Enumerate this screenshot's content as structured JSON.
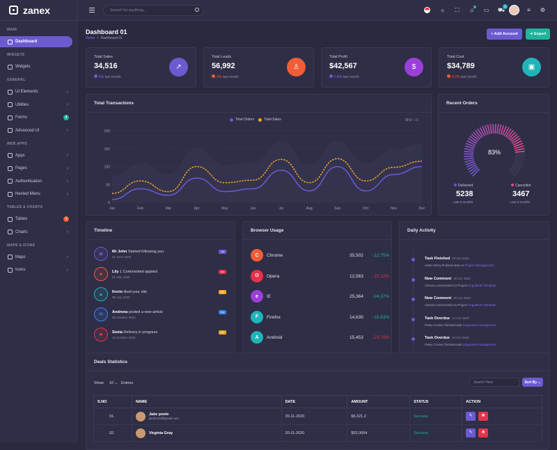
{
  "app": {
    "name": "zanex"
  },
  "sidebar": {
    "sections": [
      {
        "title": "MAIN",
        "items": [
          {
            "label": "Dashboard"
          }
        ]
      },
      {
        "title": "WIDGETS",
        "items": [
          {
            "label": "Widgets"
          }
        ]
      },
      {
        "title": "GENERAL",
        "items": [
          {
            "label": "UI Elements"
          },
          {
            "label": "Utilities"
          },
          {
            "label": "Forms",
            "badge": "4"
          },
          {
            "label": "Advanced UI"
          }
        ]
      },
      {
        "title": "WEB APPS",
        "items": [
          {
            "label": "Apps"
          },
          {
            "label": "Pages"
          },
          {
            "label": "Authentication"
          },
          {
            "label": "Nested Menu"
          }
        ]
      },
      {
        "title": "TABLES & CHARTS",
        "items": [
          {
            "label": "Tables",
            "badge": "3"
          },
          {
            "label": "Charts"
          }
        ]
      },
      {
        "title": "MAPS & ICONS",
        "items": [
          {
            "label": "Maps"
          },
          {
            "label": "Icons"
          }
        ]
      }
    ]
  },
  "topbar": {
    "search_placeholder": "Search for anything...",
    "cart_badge": "5"
  },
  "header": {
    "title": "Dashboard 01",
    "breadcrumb_home": "Home",
    "breadcrumb_sep": "/",
    "breadcrumb_current": "Dashboard 01",
    "add_account": "+ Add Account",
    "export": "Export"
  },
  "stats": [
    {
      "label": "Total Sales",
      "value": "34,516",
      "change": "5%",
      "suffix": " last month",
      "color": "#6b5bd1"
    },
    {
      "label": "Total Leads",
      "value": "56,992",
      "change": "3%",
      "suffix": " last month",
      "color": "#f25c36"
    },
    {
      "label": "Total Profit",
      "value": "$42,567",
      "change": "0.5%",
      "suffix": " last month",
      "color": "#9c3fd8"
    },
    {
      "label": "Total Cost",
      "value": "$34,789",
      "change": "0.2%",
      "suffix": " last month",
      "color": "#20b4b8"
    }
  ],
  "transactions": {
    "title": "Total Transactions",
    "legend_orders": "Total Orders",
    "legend_sales": "Total Sales"
  },
  "chart_data": {
    "type": "line",
    "title": "Total Transactions",
    "categories": [
      "Jan",
      "Feb",
      "Mar",
      "Apr",
      "May",
      "Jun",
      "Jul",
      "Aug",
      "Sep",
      "Oct",
      "Nov",
      "Dec"
    ],
    "yticks": [
      0,
      50,
      100,
      150,
      200
    ],
    "ylim": [
      0,
      200
    ],
    "series": [
      {
        "name": "Total Orders",
        "color": "#6b5bd1",
        "values": [
          8,
          38,
          20,
          68,
          30,
          38,
          90,
          32,
          100,
          32,
          78,
          100
        ]
      },
      {
        "name": "Total Sales",
        "color": "#f5a623",
        "values": [
          25,
          60,
          30,
          100,
          55,
          62,
          120,
          55,
          122,
          60,
          98,
          115
        ]
      }
    ]
  },
  "orders": {
    "title": "Recent Orders",
    "percent": "83%",
    "fill": 0.83,
    "delivered_label": "Delivered",
    "delivered_value": "5238",
    "delivered_sub": "Last 6 months",
    "cancelled_label": "Cancelled",
    "cancelled_value": "3467",
    "cancelled_sub": "Last 6 months"
  },
  "timeline": {
    "title": "Timeline",
    "items": [
      {
        "name": "Mr John",
        "text": " Started following you",
        "date": "01 June 2020",
        "badge": "1m",
        "color": "#6b5bd1",
        "badge_color": "#6b5bd1",
        "icon": "◉"
      },
      {
        "name": "Lily",
        "text": " 1 Commented applied",
        "date": "01 July 2020",
        "badge": "5m",
        "color": "#f25c36",
        "badge_color": "#e8324b",
        "icon": "●"
      },
      {
        "name": "Kevin",
        "text": " liked your site",
        "date": "05 July 2020",
        "badge": "5m",
        "color": "#20b4b8",
        "badge_color": "#f5a623",
        "icon": "▲"
      },
      {
        "name": "Andrena",
        "text": " posted a new article",
        "date": "09 October 2020",
        "badge": "5m",
        "color": "#3b82f6",
        "badge_color": "#3b82f6",
        "icon": "✉"
      },
      {
        "name": "Sonia",
        "text": " Delivery in progress",
        "date": "12 October 2020",
        "badge": "5m",
        "color": "#e8324b",
        "badge_color": "#f5a623",
        "icon": "■"
      }
    ]
  },
  "browser": {
    "title": "Browser Usage",
    "items": [
      {
        "name": "Chrome",
        "value": "35,502",
        "pct": "12.75%",
        "up": true,
        "color": "#f25c36",
        "icon": "C"
      },
      {
        "name": "Opera",
        "value": "12,563",
        "pct": "15.12%",
        "up": false,
        "color": "#e8324b",
        "icon": "O"
      },
      {
        "name": "IE",
        "value": "25,364",
        "pct": "24.37%",
        "up": true,
        "color": "#9c3fd8",
        "icon": "e"
      },
      {
        "name": "Firefox",
        "value": "14,635",
        "pct": "15.63%",
        "up": true,
        "color": "#20b4b8",
        "icon": "F"
      },
      {
        "name": "Android",
        "value": "15,453",
        "pct": "23.70%",
        "up": false,
        "color": "#20b4b8",
        "icon": "A"
      }
    ]
  },
  "activity": {
    "title": "Daily Activity",
    "items": [
      {
        "title": "Task Finished",
        "date": "29 Oct 2020",
        "desc": "Adam Berry finished task on ",
        "link": "Project Management"
      },
      {
        "title": "New Comment",
        "date": "25 Oct 2020",
        "desc": "Victoria commented on Project ",
        "link": "AngularJS Template"
      },
      {
        "title": "New Comment",
        "date": "25 Oct 2020",
        "desc": "Victoria commented on Project ",
        "link": "AngularJS Template"
      },
      {
        "title": "Task Overdue",
        "date": "14 Oct 2020",
        "desc": "Petey Cruiser finished task ",
        "link": "Integrated management"
      },
      {
        "title": "Task Overdue",
        "date": "29 Oct 2020",
        "desc": "Petey Cruiser finished task ",
        "link": "Integrated management"
      }
    ]
  },
  "deals": {
    "title": "Deals Statistics",
    "show": "Show",
    "entries_value": "10",
    "entries": "Entries",
    "search_placeholder": "Search Here",
    "sort": "Sort By",
    "columns": [
      "S.NO",
      "NAME",
      "DATE",
      "AMOUNT",
      "STATUS",
      "ACTION"
    ],
    "rows": [
      {
        "no": "01.",
        "name": "Jake poole",
        "email": "jacke123@gmail.com",
        "date": "20-11-2020",
        "amount": "$5.321.2",
        "status": "Success"
      },
      {
        "no": "02.",
        "name": "Virginia Gray",
        "email": "",
        "date": "20-11-2020",
        "amount": "$53,3654",
        "status": "Success"
      }
    ]
  }
}
